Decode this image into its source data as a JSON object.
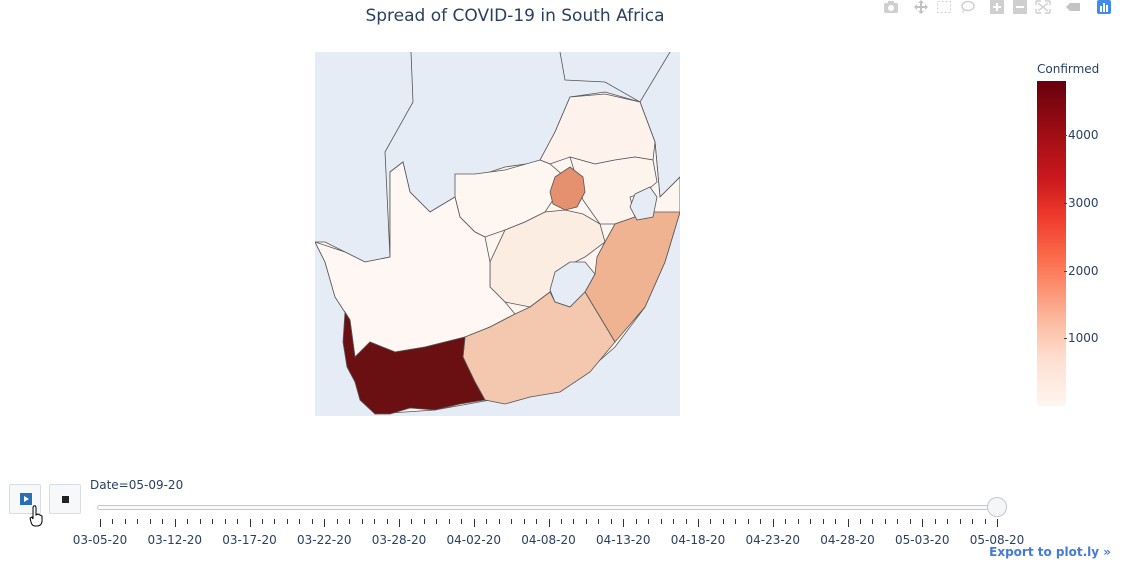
{
  "modebar": {
    "icons": [
      "camera-icon",
      "pan-icon",
      "box-select-icon",
      "lasso-icon",
      "zoom-in-icon",
      "zoom-out-icon",
      "autoscale-icon",
      "hover-icon",
      "plotly-logo-icon"
    ]
  },
  "chart_data": {
    "type": "choropleth",
    "title": "Spread of COVID-19 in South Africa",
    "frame_label": "Date=05-09-20",
    "colorbar": {
      "title": "Confirmed",
      "ticks": [
        "1000",
        "2000",
        "3000",
        "4000"
      ],
      "range": [
        0,
        4800
      ],
      "colorscale": "Reds"
    },
    "regions": [
      {
        "name": "Western Cape",
        "value": 4800,
        "color": "#6a0f12"
      },
      {
        "name": "Gauteng",
        "value": 1700,
        "color": "#e5906f"
      },
      {
        "name": "KwaZulu-Natal",
        "value": 1200,
        "color": "#f0b392"
      },
      {
        "name": "Eastern Cape",
        "value": 1000,
        "color": "#f3c8ae"
      },
      {
        "name": "Free State",
        "value": 130,
        "color": "#fcede3"
      },
      {
        "name": "Limpopo",
        "value": 60,
        "color": "#fdf2ec"
      },
      {
        "name": "Mpumalanga",
        "value": 80,
        "color": "#fdf4ee"
      },
      {
        "name": "North West",
        "value": 50,
        "color": "#fef6f0"
      },
      {
        "name": "Northern Cape",
        "value": 30,
        "color": "#fef7f3"
      }
    ],
    "background_color": "#e6ecf5"
  },
  "slider": {
    "ticks": [
      "03-05-20",
      "03-12-20",
      "03-17-20",
      "03-22-20",
      "03-28-20",
      "04-02-20",
      "04-08-20",
      "04-13-20",
      "04-18-20",
      "04-23-20",
      "04-28-20",
      "05-03-20",
      "05-08-20"
    ],
    "current_fraction": 1.0
  },
  "controls": {
    "play_icon": "play-icon",
    "stop_icon": "stop-icon"
  },
  "export_label": "Export to plot.ly »"
}
